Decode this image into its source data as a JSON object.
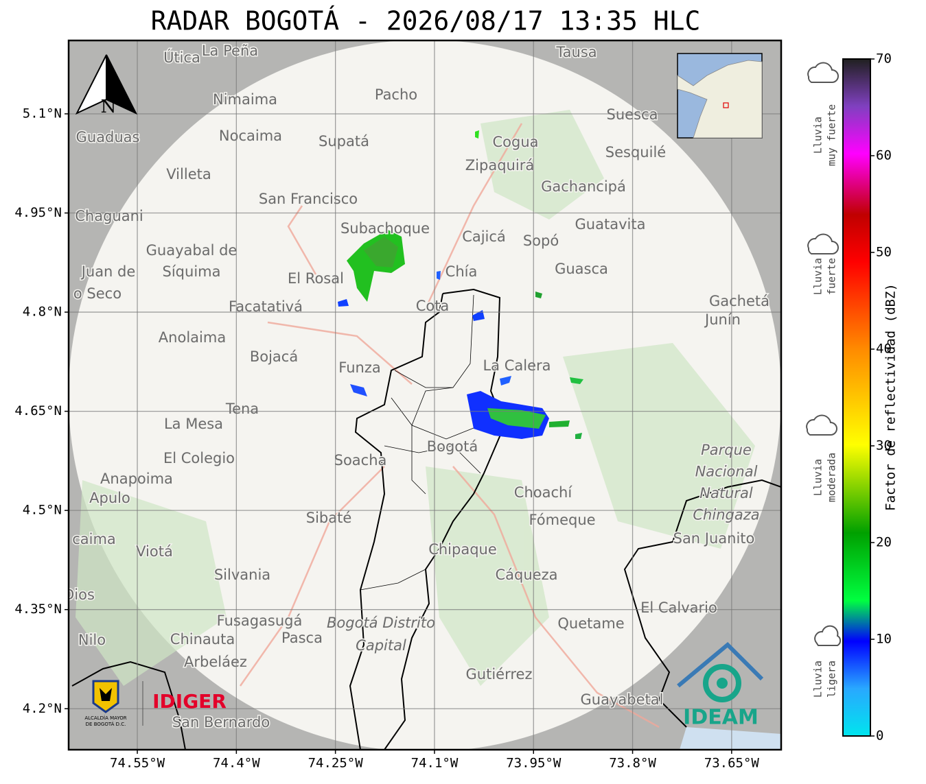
{
  "map": {
    "title": "RADAR BOGOTÁ - 2026/08/17 13:35 HLC",
    "xlim": [
      -74.654,
      -73.575
    ],
    "ylim": [
      4.138,
      5.211
    ],
    "xticks": [
      {
        "value": -74.55,
        "label": "74.55°W"
      },
      {
        "value": -74.4,
        "label": "74.4°W"
      },
      {
        "value": -74.25,
        "label": "74.25°W"
      },
      {
        "value": -74.1,
        "label": "74.1°W"
      },
      {
        "value": -73.95,
        "label": "73.95°W"
      },
      {
        "value": -73.8,
        "label": "73.8°W"
      },
      {
        "value": -73.65,
        "label": "73.65°W"
      }
    ],
    "yticks": [
      {
        "value": 5.1,
        "label": "5.1°N"
      },
      {
        "value": 4.95,
        "label": "4.95°N"
      },
      {
        "value": 4.8,
        "label": "4.8°N"
      },
      {
        "value": 4.65,
        "label": "4.65°N"
      },
      {
        "value": 4.5,
        "label": "4.5°N"
      },
      {
        "value": 4.35,
        "label": "4.35°N"
      },
      {
        "value": 4.2,
        "label": "4.2°N"
      }
    ],
    "grid": true,
    "north_label": "N",
    "places": [
      "Útica",
      "La Peña",
      "Tausa",
      "Pacho",
      "Nimaima",
      "Guaduas",
      "Nocaima",
      "Supatá",
      "Cogua",
      "Suesca",
      "Sesquilé",
      "Zipaquirá",
      "Villeta",
      "Gachancipá",
      "San Francisco",
      "Chaguani",
      "Subachoque",
      "Cajicá",
      "Sopó",
      "Guatavita",
      "Guayabal de",
      "Síquima",
      "Juan de",
      "o Seco",
      "Chía",
      "Guasca",
      "El Rosal",
      "Facatativá",
      "Cota",
      "Gachetá",
      "Junín",
      "Anolaima",
      "Bojacá",
      "Funza",
      "La Calera",
      "Tena",
      "La Mesa",
      "Bogotá",
      "El Colegio",
      "Soacha",
      "Anapoima",
      "Apulo",
      "Choachí",
      "Sibaté",
      "Fómeque",
      "San Juanito",
      "caima",
      "Viotá",
      "Chipaque",
      "Silvania",
      "Cáqueza",
      "Dios",
      "El Calvario",
      "Fusagasugá",
      "Quetame",
      "Nilo",
      "Chinauta",
      "Pasca",
      "Arbeláez",
      "Gutiérrez",
      "Guayabetal",
      "San Bernardo"
    ],
    "park_label": [
      "Parque",
      "Nacional",
      "Natural",
      "Chingaza"
    ],
    "district_label": [
      "Bogotá Distrito",
      "Capital"
    ],
    "logos": {
      "idiger": "IDIGER",
      "ideam": "IDEAM",
      "alcaldia": [
        "ALCALDÍA MAYOR",
        "DE BOGOTÁ D.C."
      ]
    }
  },
  "colorbar": {
    "label": "Factor de reflectividad (dBZ)",
    "lim": [
      0,
      70
    ],
    "ticks": [
      0,
      10,
      20,
      30,
      40,
      50,
      60,
      70
    ],
    "levels": [
      [
        "Lluvia",
        "muy fuerte"
      ],
      [
        "Lluvia",
        "fuerte"
      ],
      [
        "Lluvia",
        "moderada"
      ],
      [
        "Lluvia",
        "ligera"
      ]
    ]
  }
}
